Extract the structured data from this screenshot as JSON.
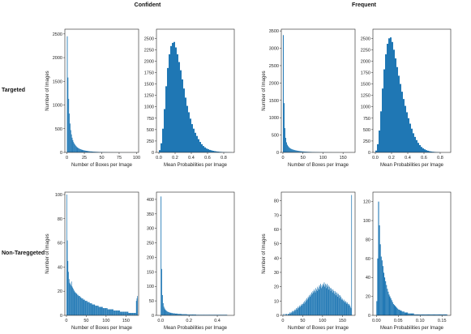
{
  "figure": {
    "col_titles": [
      "Confident",
      "Frequent"
    ],
    "row_titles": [
      "Targeted",
      "Non-Tareggeted"
    ],
    "accent": "#1f77b4"
  },
  "chart_data": [
    {
      "type": "bar",
      "group": "Confident",
      "row": "Targeted",
      "panel": "boxes",
      "xlabel": "Number of Boxes per Image",
      "ylabel": "Number of Images",
      "xlim": [
        -3,
        103
      ],
      "ylim": [
        0,
        2600
      ],
      "xticks": [
        0,
        25,
        50,
        75,
        100
      ],
      "yticks": [
        0,
        500,
        1000,
        1500,
        2000,
        2500
      ],
      "bin_start": 0,
      "bin_width": 1,
      "values": [
        2450,
        1580,
        1130,
        820,
        610,
        470,
        380,
        310,
        260,
        220,
        190,
        165,
        145,
        128,
        112,
        100,
        90,
        82,
        74,
        68,
        62,
        57,
        52,
        48,
        44,
        41,
        38,
        35,
        32,
        30,
        28,
        26,
        24,
        22,
        21,
        20,
        18,
        17,
        16,
        15,
        14,
        13,
        12,
        11,
        11,
        10,
        9,
        9,
        8,
        8,
        7,
        7,
        6,
        6,
        6,
        5,
        5,
        5,
        4,
        4,
        4,
        4,
        3,
        3,
        3,
        3,
        3,
        2,
        2,
        2,
        2,
        2,
        2,
        2,
        1,
        1,
        1,
        1,
        1,
        1,
        1,
        1,
        1,
        1,
        1,
        1,
        1,
        1,
        1,
        1,
        1,
        1,
        1,
        1,
        1,
        1,
        1,
        1,
        1,
        1
      ]
    },
    {
      "type": "bar",
      "group": "Confident",
      "row": "Targeted",
      "panel": "probs",
      "xlabel": "Mean Probabilities per Image",
      "ylabel": "",
      "xlim": [
        -0.03,
        0.93
      ],
      "ylim": [
        0,
        2700
      ],
      "xticks": [
        0.0,
        0.2,
        0.4,
        0.6,
        0.8
      ],
      "yticks": [
        0,
        250,
        500,
        750,
        1000,
        1250,
        1500,
        1750,
        2000,
        2250,
        2500
      ],
      "bin_start": 0.0,
      "bin_width": 0.02,
      "values": [
        50,
        200,
        520,
        950,
        1450,
        1850,
        2150,
        2330,
        2400,
        2420,
        2300,
        2150,
        1980,
        1800,
        1600,
        1400,
        1200,
        1020,
        880,
        740,
        620,
        520,
        430,
        360,
        290,
        230,
        180,
        140,
        110,
        85,
        70,
        55,
        45,
        35,
        28,
        22,
        18,
        14,
        11,
        9,
        7,
        6,
        5,
        4,
        3
      ]
    },
    {
      "type": "bar",
      "group": "Frequent",
      "row": "Targeted",
      "panel": "boxes",
      "xlabel": "Number of Boxes per Image",
      "ylabel": "Number of Images",
      "xlim": [
        -4,
        180
      ],
      "ylim": [
        0,
        3550
      ],
      "xticks": [
        0,
        50,
        100,
        150
      ],
      "yticks": [
        0,
        500,
        1000,
        1500,
        2000,
        2500,
        3000,
        3500
      ],
      "bin_start": 0,
      "bin_width": 2,
      "values": [
        3380,
        1420,
        700,
        420,
        290,
        220,
        180,
        150,
        130,
        112,
        100,
        90,
        82,
        75,
        68,
        62,
        57,
        52,
        48,
        44,
        40,
        37,
        34,
        31,
        29,
        27,
        25,
        23,
        21,
        20,
        18,
        17,
        16,
        15,
        14,
        13,
        12,
        11,
        11,
        10,
        9,
        9,
        8,
        8,
        7,
        7,
        6,
        6,
        6,
        5,
        5,
        5,
        4,
        4,
        4,
        4,
        3,
        3,
        3,
        3,
        3,
        2,
        2,
        2,
        2,
        2,
        2,
        2,
        2,
        2,
        1,
        1,
        1,
        1,
        1,
        1,
        1,
        1,
        1,
        1,
        1,
        1,
        1,
        1,
        1,
        1
      ]
    },
    {
      "type": "bar",
      "group": "Frequent",
      "row": "Targeted",
      "panel": "probs",
      "xlabel": "Mean Probabilities per Image",
      "ylabel": "",
      "xlim": [
        -0.03,
        0.93
      ],
      "ylim": [
        0,
        2700
      ],
      "xticks": [
        0.0,
        0.2,
        0.4,
        0.6,
        0.8
      ],
      "yticks": [
        0,
        250,
        500,
        750,
        1000,
        1250,
        1500,
        1750,
        2000,
        2250,
        2500
      ],
      "bin_start": 0.0,
      "bin_width": 0.02,
      "values": [
        40,
        180,
        480,
        900,
        1400,
        1820,
        2150,
        2380,
        2500,
        2520,
        2420,
        2250,
        2060,
        1870,
        1680,
        1500,
        1330,
        1170,
        1020,
        880,
        750,
        630,
        520,
        420,
        340,
        270,
        210,
        160,
        120,
        90,
        68,
        50,
        37,
        27,
        20,
        15,
        11,
        8,
        6,
        4
      ]
    },
    {
      "type": "bar",
      "group": "Confident",
      "row": "Non-Tareggeted",
      "panel": "boxes",
      "xlabel": "Number of Boxes per Image",
      "ylabel": "Number of Images",
      "xlim": [
        -4,
        182
      ],
      "ylim": [
        0,
        102
      ],
      "xticks": [
        0,
        50,
        100,
        150
      ],
      "yticks": [
        0,
        20,
        40,
        60,
        80,
        100
      ],
      "bin_start": 0,
      "bin_width": 1.5,
      "values": [
        100,
        62,
        45,
        36,
        30,
        27,
        26,
        25,
        28,
        24,
        23,
        22,
        21,
        20,
        19,
        19,
        18,
        18,
        17,
        17,
        16,
        16,
        16,
        15,
        15,
        14,
        14,
        14,
        13,
        13,
        13,
        12,
        12,
        12,
        12,
        11,
        11,
        11,
        11,
        10,
        10,
        10,
        10,
        9,
        9,
        9,
        9,
        9,
        8,
        8,
        8,
        8,
        8,
        8,
        7,
        7,
        7,
        7,
        7,
        7,
        7,
        6,
        6,
        6,
        6,
        6,
        6,
        6,
        6,
        5,
        5,
        5,
        5,
        5,
        5,
        5,
        5,
        5,
        5,
        4,
        4,
        4,
        4,
        4,
        4,
        4,
        4,
        4,
        4,
        4,
        3,
        3,
        3,
        3,
        3,
        3,
        3,
        3,
        3,
        3,
        3,
        3,
        3,
        3,
        2,
        2,
        2,
        2,
        2,
        2,
        2,
        2,
        2,
        2,
        2,
        2,
        2,
        12,
        14,
        16
      ]
    },
    {
      "type": "bar",
      "group": "Confident",
      "row": "Non-Tareggeted",
      "panel": "probs",
      "xlabel": "Mean Probabilities per Image",
      "ylabel": "",
      "xlim": [
        -0.03,
        0.52
      ],
      "ylim": [
        0,
        425
      ],
      "xticks": [
        0.0,
        0.2,
        0.4
      ],
      "yticks": [
        0,
        50,
        100,
        150,
        200,
        250,
        300,
        350,
        400
      ],
      "bin_start": 0.0,
      "bin_width": 0.005,
      "values": [
        410,
        160,
        70,
        42,
        30,
        24,
        20,
        17,
        15,
        13,
        12,
        11,
        10,
        9,
        9,
        8,
        8,
        7,
        7,
        7,
        6,
        6,
        6,
        6,
        5,
        5,
        5,
        5,
        5,
        4,
        4,
        4,
        4,
        4,
        4,
        4,
        4,
        3,
        3,
        3,
        3,
        3,
        3,
        3,
        3,
        3,
        3,
        3,
        3,
        3,
        2,
        2,
        2,
        2,
        2,
        2,
        2,
        2,
        2,
        2,
        2,
        2,
        2,
        2,
        2,
        2,
        2,
        2,
        2,
        2,
        2,
        2,
        2,
        2,
        2,
        2,
        2,
        2,
        2,
        2,
        2,
        2,
        2,
        2,
        2,
        2,
        2,
        2,
        2,
        2,
        2,
        2,
        2,
        2
      ]
    },
    {
      "type": "bar",
      "group": "Frequent",
      "row": "Non-Tareggeted",
      "panel": "boxes",
      "xlabel": "Number of Boxes per Image",
      "ylabel": "Number of Images",
      "xlim": [
        -4,
        182
      ],
      "ylim": [
        0,
        86
      ],
      "xticks": [
        0,
        50,
        100,
        150
      ],
      "yticks": [
        0,
        10,
        20,
        30,
        40,
        50,
        60,
        70,
        80
      ],
      "bin_start": 0,
      "bin_width": 1.5,
      "values": [
        1,
        0,
        0,
        1,
        0,
        1,
        1,
        0,
        1,
        1,
        1,
        2,
        1,
        2,
        2,
        3,
        2,
        3,
        3,
        4,
        3,
        4,
        5,
        4,
        5,
        6,
        5,
        6,
        7,
        6,
        7,
        8,
        7,
        8,
        9,
        8,
        10,
        9,
        11,
        10,
        12,
        11,
        13,
        12,
        14,
        13,
        15,
        14,
        16,
        15,
        17,
        16,
        18,
        17,
        16,
        19,
        18,
        17,
        20,
        19,
        18,
        21,
        20,
        22,
        19,
        21,
        20,
        22,
        21,
        23,
        20,
        22,
        21,
        19,
        22,
        20,
        21,
        18,
        20,
        19,
        17,
        19,
        18,
        16,
        18,
        17,
        15,
        17,
        16,
        14,
        16,
        15,
        13,
        15,
        14,
        12,
        14,
        13,
        11,
        12,
        11,
        10,
        11,
        10,
        9,
        10,
        9,
        8,
        9,
        8,
        7,
        8,
        7,
        6,
        5,
        84
      ]
    },
    {
      "type": "bar",
      "group": "Frequent",
      "row": "Non-Tareggeted",
      "panel": "probs",
      "xlabel": "Mean Probabilities per Image",
      "ylabel": "",
      "xlim": [
        -0.008,
        0.17
      ],
      "ylim": [
        0,
        130
      ],
      "xticks": [
        0.0,
        0.05,
        0.1,
        0.15
      ],
      "yticks": [
        0,
        20,
        40,
        60,
        80,
        100,
        120
      ],
      "bin_start": 0.0,
      "bin_width": 0.002,
      "values": [
        15,
        60,
        120,
        95,
        75,
        62,
        58,
        52,
        45,
        40,
        36,
        32,
        28,
        25,
        22,
        20,
        18,
        16,
        14,
        12,
        11,
        10,
        9,
        8,
        7,
        6,
        6,
        5,
        5,
        4,
        4,
        4,
        3,
        3,
        3,
        3,
        2,
        2,
        2,
        2,
        2,
        2,
        2,
        1,
        1,
        1,
        1,
        1,
        1,
        1,
        1,
        1,
        1,
        1,
        1,
        1,
        1,
        1,
        1,
        1,
        1,
        1,
        1,
        1,
        1,
        1,
        1,
        1,
        1,
        1,
        1,
        1,
        1,
        1,
        1,
        1,
        1,
        1,
        1,
        1,
        1
      ]
    }
  ]
}
